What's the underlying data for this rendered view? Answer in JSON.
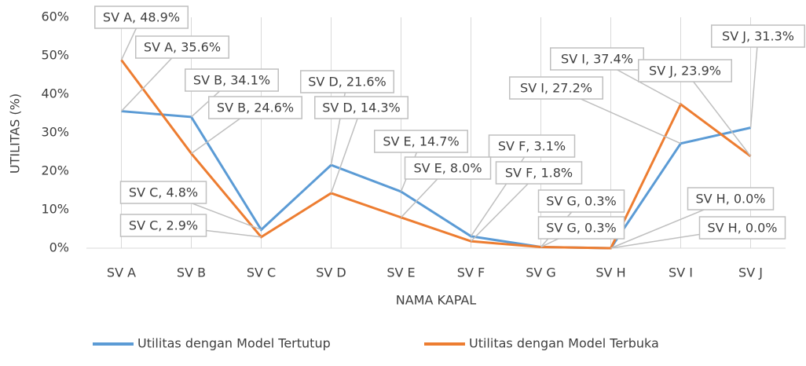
{
  "chart_data": {
    "type": "line",
    "x_label": "NAMA KAPAL",
    "y_label": "UTILITAS (%)",
    "categories": [
      "SV A",
      "SV B",
      "SV C",
      "SV D",
      "SV E",
      "SV F",
      "SV G",
      "SV H",
      "SV I",
      "SV J"
    ],
    "series": [
      {
        "name": "Utilitas dengan Model Tertutup",
        "color": "#5b9bd5",
        "values": [
          35.6,
          34.1,
          4.8,
          21.6,
          14.7,
          3.1,
          0.3,
          0.0,
          27.2,
          31.3
        ],
        "value_labels": [
          "SV A, 35.6%",
          "SV B, 34.1%",
          "SV C, 4.8%",
          "SV D, 21.6%",
          "SV E, 14.7%",
          "SV F, 3.1%",
          "SV G, 0.3%",
          "SV H, 0.0%",
          "SV I, 27.2%",
          "SV J, 31.3%"
        ]
      },
      {
        "name": "Utilitas dengan Model Terbuka",
        "color": "#ed7d31",
        "values": [
          48.9,
          24.6,
          2.9,
          14.3,
          8.0,
          1.8,
          0.3,
          0.0,
          37.4,
          23.9
        ],
        "value_labels": [
          "SV A, 48.9%",
          "SV B, 24.6%",
          "SV C, 2.9%",
          "SV D, 14.3%",
          "SV E, 8.0%",
          "SV F, 1.8%",
          "SV G, 0.3%",
          "SV H, 0.0%",
          "SV I, 37.4%",
          "SV J, 23.9%"
        ]
      }
    ],
    "ylim": [
      0,
      60
    ],
    "yticks": [
      {
        "value": 0,
        "label": "0%"
      },
      {
        "value": 10,
        "label": "10%"
      },
      {
        "value": 20,
        "label": "20%"
      },
      {
        "value": 30,
        "label": "30%"
      },
      {
        "value": 40,
        "label": "40%"
      },
      {
        "value": 50,
        "label": "50%"
      },
      {
        "value": 60,
        "label": "60%"
      }
    ],
    "legend": "bottom"
  }
}
